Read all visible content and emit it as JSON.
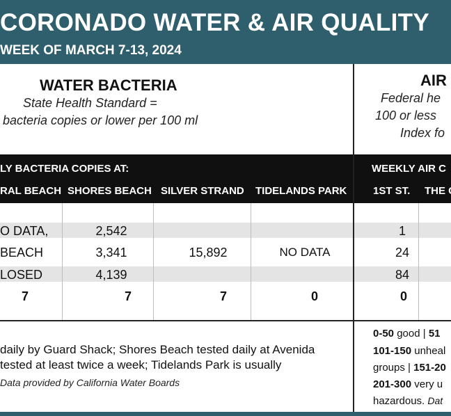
{
  "header": {
    "title": "CORONADO WATER & AIR QUALITY",
    "subtitle": "WEEK OF MARCH 7-13, 2024"
  },
  "water": {
    "heading": "WATER BACTERIA",
    "standard_line1": "State Health Standard  =",
    "standard_line2": "bacteria copies or lower per 100 ml",
    "bar_label": "LY BACTERIA COPIES AT:",
    "columns": [
      "RAL BEACH",
      "SHORES BEACH",
      "SILVER STRAND",
      "TIDELANDS PARK"
    ],
    "rows": [
      [
        "O DATA,",
        "2,542",
        "",
        ""
      ],
      [
        "BEACH",
        "3,341",
        "15,892",
        "NO DATA"
      ],
      [
        "LOSED",
        "4,139",
        "",
        ""
      ]
    ],
    "totals": [
      "7",
      "7",
      "7",
      "0"
    ],
    "footnote_line1": "daily by Guard Shack; Shores Beach tested daily at Avenida",
    "footnote_line2": "tested at least twice a week; Tidelands Park is usually",
    "source": "Data provided by California Water Boards"
  },
  "air": {
    "heading": "AIR",
    "standard_line1": "Federal he",
    "standard_line2": "100 or less",
    "standard_line3": "Index fo",
    "bar_label": "WEEKLY AIR C",
    "columns": [
      "1ST ST.",
      "THE C"
    ],
    "rows": [
      "1",
      "24",
      "84"
    ],
    "total": "0",
    "legend": {
      "line1_bold": "0-50",
      "line1_rest": " good | ",
      "line1_tail_bold": "51",
      "line2_bold": "101-150",
      "line2_rest": " unheal",
      "line3_a": "groups | ",
      "line3_bold": "151-20",
      "line4_bold": "201-300",
      "line4_rest": " very u",
      "line5_a": "hazardous. ",
      "line5_italic": "Dat"
    }
  }
}
